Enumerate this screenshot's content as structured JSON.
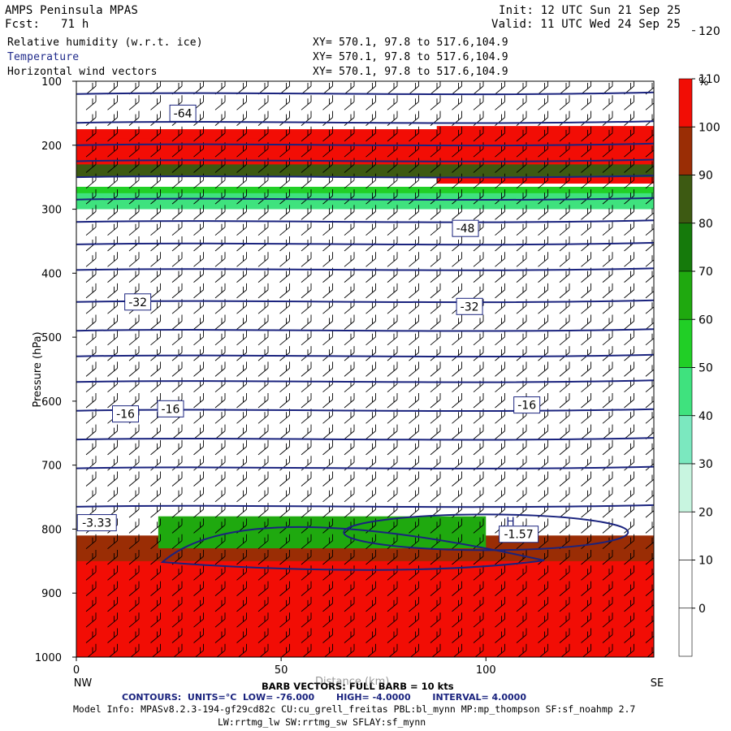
{
  "header": {
    "model": "AMPS Peninsula MPAS",
    "fcst_label": "Fcst:",
    "fcst_value": "71 h",
    "init_label": "Init:",
    "init_value": "12 UTC Sun 21 Sep 25",
    "valid_label": "Valid:",
    "valid_value": "11 UTC Wed 24 Sep 25",
    "fields": [
      {
        "name": "Relative humidity (w.r.t. ice)",
        "xy": "XY= 570.1, 97.8 to 517.6,104.9"
      },
      {
        "name": "Temperature",
        "xy": "XY= 570.1, 97.8 to 517.6,104.9"
      },
      {
        "name": "Horizontal wind vectors",
        "xy": "XY= 570.1, 97.8 to 517.6,104.9"
      }
    ]
  },
  "footer": {
    "barb_note": "BARB VECTORS: FULL BARB = 10 kts",
    "overlap_text": "Distance (km)",
    "contours_prefix": "CONTOURS:",
    "contours_units": "UNITS=°C",
    "contours_low": "LOW= -76.000",
    "contours_high": "HIGH= -4.0000",
    "contours_interval": "INTERVAL= 4.0000",
    "model_info_1": "Model Info: MPASv8.2.3-194-gf29cd82c CU:cu_grell_freitas PBL:bl_mynn MP:mp_thompson SF:sf_noahmp 2.7",
    "model_info_2": "LW:rrtmg_lw SW:rrtmg_sw SFLAY:sf_mynn"
  },
  "colors": {
    "contour": "#1a237e",
    "rh_scale": [
      "#ffffff",
      "#ffffff",
      "#ffffff",
      "#c8f5e0",
      "#7be8bf",
      "#3fe27e",
      "#21cf26",
      "#1fa90f",
      "#157a0b",
      "#3d5a12",
      "#9a2d05",
      "#f20d05"
    ]
  },
  "chart_data": {
    "type": "heatmap",
    "title": "",
    "xlabel": "",
    "ylabel": "Pressure (hPa)",
    "x_endpoints": [
      "NW",
      "SE"
    ],
    "xlim": [
      0,
      141
    ],
    "ylim": [
      1000,
      100
    ],
    "x_ticks": [
      0,
      50,
      100
    ],
    "y_ticks": [
      100,
      200,
      300,
      400,
      500,
      600,
      700,
      800,
      900,
      1000
    ],
    "colorbar": {
      "unit": "%",
      "levels": [
        0,
        10,
        20,
        30,
        40,
        50,
        60,
        70,
        80,
        90,
        100,
        110,
        120
      ],
      "labels": [
        "0",
        "10",
        "20",
        "30",
        "40",
        "50",
        "60",
        "70",
        "80",
        "90",
        "100",
        "110",
        "120"
      ]
    },
    "rh_bands": [
      {
        "p_top": 175,
        "p_bot": 240,
        "rh": 100
      },
      {
        "p_top": 190,
        "p_bot": 225,
        "rh": 115,
        "x_to": 45
      },
      {
        "p_top": 170,
        "p_bot": 260,
        "rh": 100,
        "x_from": 88
      },
      {
        "p_top": 230,
        "p_bot": 250,
        "rh": 80
      },
      {
        "p_top": 265,
        "p_bot": 285,
        "rh": 55
      },
      {
        "p_top": 275,
        "p_bot": 300,
        "rh": 40
      },
      {
        "p_top": 810,
        "p_bot": 1000,
        "rh": 90
      },
      {
        "p_top": 850,
        "p_bot": 1000,
        "rh": 100
      },
      {
        "p_top": 780,
        "p_bot": 830,
        "rh": 60,
        "x_from": 20,
        "x_to": 100
      }
    ],
    "temperature_labels": [
      {
        "x": 26,
        "p": 150,
        "text": "-64"
      },
      {
        "x": 95,
        "p": 330,
        "text": "-48"
      },
      {
        "x": 15,
        "p": 445,
        "text": "-32"
      },
      {
        "x": 96,
        "p": 452,
        "text": "-32"
      },
      {
        "x": 12,
        "p": 620,
        "text": "-16"
      },
      {
        "x": 23,
        "p": 612,
        "text": "-16"
      },
      {
        "x": 110,
        "p": 606,
        "text": "-16"
      },
      {
        "x": 5,
        "p": 790,
        "text": "-3.33"
      },
      {
        "x": 108,
        "p": 808,
        "text": "-1.57"
      }
    ],
    "extrema_labels": [
      {
        "x": 106,
        "p": 788,
        "text": "H"
      }
    ],
    "temperature_contour_levels_p": [
      120,
      165,
      200,
      225,
      250,
      285,
      320,
      355,
      395,
      445,
      490,
      530,
      570,
      615,
      660,
      705,
      765
    ]
  }
}
